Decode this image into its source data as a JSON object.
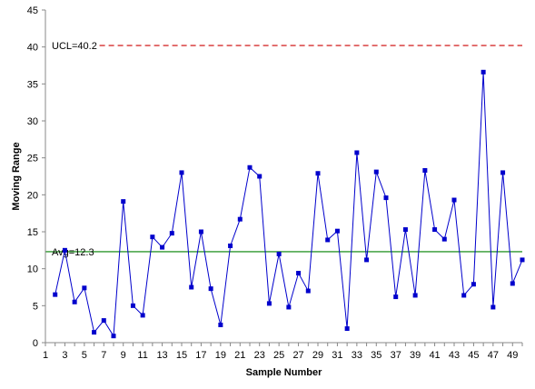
{
  "chart_data": {
    "type": "line",
    "title": "",
    "xlabel": "Sample Number",
    "ylabel": "Moving Range",
    "xlim": [
      1,
      50
    ],
    "ylim": [
      0,
      45
    ],
    "x_ticks": [
      1,
      3,
      5,
      7,
      9,
      11,
      13,
      15,
      17,
      19,
      21,
      23,
      25,
      27,
      29,
      31,
      33,
      35,
      37,
      39,
      41,
      43,
      45,
      47,
      49
    ],
    "y_ticks": [
      0,
      5,
      10,
      15,
      20,
      25,
      30,
      35,
      40,
      45
    ],
    "grid": false,
    "series": [
      {
        "color": "#0000CC",
        "x": [
          2,
          3,
          4,
          5,
          6,
          7,
          8,
          9,
          10,
          11,
          12,
          13,
          14,
          15,
          16,
          17,
          18,
          19,
          20,
          21,
          22,
          23,
          24,
          25,
          26,
          27,
          28,
          29,
          30,
          31,
          32,
          33,
          34,
          35,
          36,
          37,
          38,
          39,
          40,
          41,
          42,
          43,
          44,
          45,
          46,
          47,
          48,
          49,
          50
        ],
        "values": [
          6.5,
          12.5,
          5.5,
          7.4,
          1.4,
          3.0,
          0.9,
          19.1,
          5.0,
          3.7,
          14.3,
          12.9,
          14.8,
          23.0,
          7.5,
          15.0,
          7.3,
          2.4,
          13.1,
          16.7,
          23.7,
          22.5,
          5.3,
          12.0,
          4.8,
          9.4,
          7.0,
          22.9,
          13.9,
          15.1,
          1.9,
          25.7,
          11.2,
          23.1,
          19.6,
          6.2,
          15.3,
          6.4,
          23.3,
          15.3,
          14.0,
          19.3,
          6.4,
          7.9,
          36.6,
          4.8,
          23.0,
          8.0,
          11.2
        ]
      }
    ],
    "reference_lines": [
      {
        "label": "UCL=40.2",
        "value": 40.2,
        "color": "#CC0000",
        "style": "dashed"
      },
      {
        "label": "Avg=12.3",
        "value": 12.3,
        "color": "#008000",
        "style": "solid"
      }
    ]
  }
}
